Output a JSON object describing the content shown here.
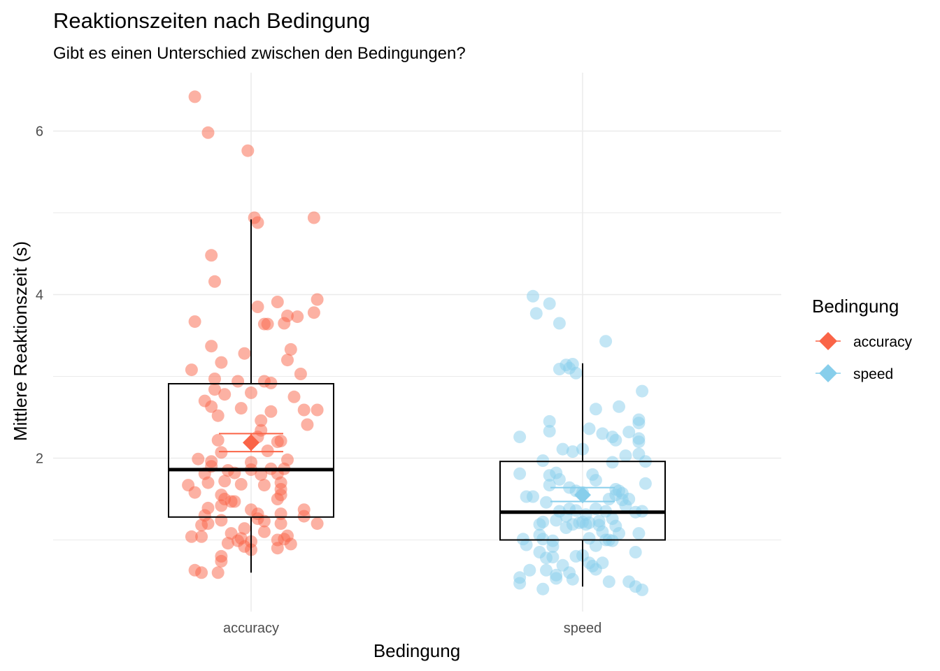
{
  "chart_data": {
    "type": "box+jitter",
    "title": "Reaktionszeiten nach Bedingung",
    "subtitle": "Gibt es einen Unterschied zwischen den Bedingungen?",
    "xlabel": "Bedingung",
    "ylabel": "Mittlere Reaktionszeit (s)",
    "categories": [
      "accuracy",
      "speed"
    ],
    "ylim": [
      0.25,
      6.7
    ],
    "yticks": [
      2,
      4,
      6
    ],
    "grid": true,
    "legend": {
      "title": "Bedingung",
      "position": "right",
      "entries": [
        "accuracy",
        "speed"
      ]
    },
    "colors": {
      "accuracy": "#FA6447",
      "speed": "#87CEEB",
      "box": "#000000",
      "grid": "#EBEBEB"
    },
    "boxes": [
      {
        "category": "accuracy",
        "whisker_low": 0.6,
        "q1": 1.28,
        "median": 1.86,
        "q3": 2.91,
        "whisker_high": 4.92,
        "mean": 2.19,
        "mean_ci": [
          2.08,
          2.3
        ]
      },
      {
        "category": "speed",
        "whisker_low": 0.43,
        "q1": 1.0,
        "median": 1.34,
        "q3": 1.96,
        "whisker_high": 3.16,
        "mean": 1.55,
        "mean_ci": [
          1.47,
          1.64
        ]
      }
    ],
    "points": {
      "accuracy": [
        [
          -0.17,
          6.42
        ],
        [
          -0.13,
          5.98
        ],
        [
          -0.01,
          5.76
        ],
        [
          0.01,
          4.94
        ],
        [
          0.02,
          4.88
        ],
        [
          0.19,
          4.94
        ],
        [
          -0.12,
          4.48
        ],
        [
          -0.11,
          4.16
        ],
        [
          0.2,
          3.94
        ],
        [
          0.02,
          3.85
        ],
        [
          0.08,
          3.91
        ],
        [
          0.19,
          3.78
        ],
        [
          -0.17,
          3.67
        ],
        [
          0.04,
          3.64
        ],
        [
          0.05,
          3.64
        ],
        [
          0.1,
          3.65
        ],
        [
          0.11,
          3.74
        ],
        [
          0.14,
          3.73
        ],
        [
          -0.12,
          3.37
        ],
        [
          -0.09,
          3.17
        ],
        [
          -0.02,
          3.28
        ],
        [
          0.12,
          3.33
        ],
        [
          0.11,
          3.2
        ],
        [
          -0.18,
          3.08
        ],
        [
          0.15,
          3.03
        ],
        [
          -0.11,
          2.97
        ],
        [
          -0.04,
          2.94
        ],
        [
          0.04,
          2.94
        ],
        [
          0.06,
          2.92
        ],
        [
          -0.11,
          2.84
        ],
        [
          -0.08,
          2.78
        ],
        [
          0.0,
          2.8
        ],
        [
          0.13,
          2.75
        ],
        [
          -0.14,
          2.7
        ],
        [
          -0.12,
          2.63
        ],
        [
          -0.03,
          2.61
        ],
        [
          0.06,
          2.57
        ],
        [
          0.16,
          2.59
        ],
        [
          0.2,
          2.59
        ],
        [
          -0.1,
          2.52
        ],
        [
          0.03,
          2.46
        ],
        [
          0.17,
          2.41
        ],
        [
          0.03,
          2.34
        ],
        [
          0.08,
          2.2
        ],
        [
          -0.1,
          2.22
        ],
        [
          0.02,
          2.26
        ],
        [
          0.09,
          2.21
        ],
        [
          -0.09,
          2.07
        ],
        [
          0.05,
          2.09
        ],
        [
          -0.16,
          1.99
        ],
        [
          -0.12,
          1.96
        ],
        [
          0.0,
          1.95
        ],
        [
          0.11,
          1.98
        ],
        [
          -0.12,
          1.9
        ],
        [
          -0.07,
          1.85
        ],
        [
          0.0,
          1.86
        ],
        [
          0.06,
          1.87
        ],
        [
          0.1,
          1.87
        ],
        [
          -0.14,
          1.81
        ],
        [
          -0.05,
          1.82
        ],
        [
          0.03,
          1.8
        ],
        [
          0.08,
          1.81
        ],
        [
          -0.08,
          1.72
        ],
        [
          0.09,
          1.7
        ],
        [
          -0.19,
          1.67
        ],
        [
          -0.13,
          1.7
        ],
        [
          -0.03,
          1.68
        ],
        [
          0.04,
          1.67
        ],
        [
          0.09,
          1.62
        ],
        [
          -0.17,
          1.58
        ],
        [
          -0.09,
          1.55
        ],
        [
          -0.08,
          1.5
        ],
        [
          -0.06,
          1.47
        ],
        [
          -0.05,
          1.47
        ],
        [
          0.08,
          1.5
        ],
        [
          0.09,
          1.55
        ],
        [
          -0.13,
          1.39
        ],
        [
          -0.09,
          1.42
        ],
        [
          0.0,
          1.37
        ],
        [
          0.02,
          1.32
        ],
        [
          0.09,
          1.32
        ],
        [
          0.16,
          1.37
        ],
        [
          -0.14,
          1.3
        ],
        [
          -0.09,
          1.24
        ],
        [
          0.02,
          1.26
        ],
        [
          0.04,
          1.23
        ],
        [
          0.16,
          1.29
        ],
        [
          -0.15,
          1.18
        ],
        [
          -0.13,
          1.2
        ],
        [
          0.09,
          1.2
        ],
        [
          0.2,
          1.2
        ],
        [
          -0.02,
          1.14
        ],
        [
          0.04,
          1.1
        ],
        [
          0.11,
          1.05
        ],
        [
          -0.06,
          1.08
        ],
        [
          -0.18,
          1.04
        ],
        [
          -0.15,
          1.04
        ],
        [
          -0.04,
          0.99
        ],
        [
          -0.03,
          1.02
        ],
        [
          0.0,
          0.98
        ],
        [
          0.08,
          1.0
        ],
        [
          0.1,
          1.01
        ],
        [
          -0.07,
          0.96
        ],
        [
          -0.02,
          0.92
        ],
        [
          0.0,
          0.88
        ],
        [
          0.08,
          0.9
        ],
        [
          0.12,
          0.95
        ],
        [
          -0.09,
          0.8
        ],
        [
          -0.09,
          0.74
        ],
        [
          -0.17,
          0.63
        ],
        [
          -0.15,
          0.6
        ],
        [
          -0.1,
          0.6
        ]
      ],
      "speed": [
        [
          -0.15,
          3.98
        ],
        [
          -0.14,
          3.77
        ],
        [
          -0.1,
          3.89
        ],
        [
          -0.07,
          3.65
        ],
        [
          0.07,
          3.43
        ],
        [
          -0.07,
          3.09
        ],
        [
          -0.05,
          3.14
        ],
        [
          -0.04,
          3.1
        ],
        [
          -0.03,
          3.15
        ],
        [
          -0.02,
          3.04
        ],
        [
          0.18,
          2.82
        ],
        [
          0.04,
          2.6
        ],
        [
          0.11,
          2.63
        ],
        [
          0.17,
          2.47
        ],
        [
          0.17,
          2.43
        ],
        [
          -0.1,
          2.45
        ],
        [
          -0.1,
          2.33
        ],
        [
          0.02,
          2.36
        ],
        [
          0.06,
          2.3
        ],
        [
          0.09,
          2.26
        ],
        [
          0.1,
          2.22
        ],
        [
          0.14,
          2.32
        ],
        [
          0.17,
          2.24
        ],
        [
          0.17,
          2.2
        ],
        [
          -0.19,
          2.26
        ],
        [
          -0.06,
          2.11
        ],
        [
          -0.03,
          2.08
        ],
        [
          0.0,
          2.11
        ],
        [
          0.17,
          2.05
        ],
        [
          0.13,
          2.03
        ],
        [
          0.09,
          1.95
        ],
        [
          0.19,
          1.96
        ],
        [
          -0.12,
          1.97
        ],
        [
          -0.08,
          1.82
        ],
        [
          0.03,
          1.8
        ],
        [
          -0.19,
          1.81
        ],
        [
          -0.1,
          1.79
        ],
        [
          -0.07,
          1.74
        ],
        [
          0.04,
          1.73
        ],
        [
          0.19,
          1.69
        ],
        [
          -0.1,
          1.67
        ],
        [
          -0.04,
          1.64
        ],
        [
          -0.02,
          1.6
        ],
        [
          0.0,
          1.58
        ],
        [
          0.1,
          1.62
        ],
        [
          0.11,
          1.6
        ],
        [
          0.12,
          1.57
        ],
        [
          0.1,
          1.55
        ],
        [
          0.08,
          1.5
        ],
        [
          0.14,
          1.5
        ],
        [
          0.12,
          1.49
        ],
        [
          -0.17,
          1.53
        ],
        [
          -0.15,
          1.53
        ],
        [
          -0.11,
          1.46
        ],
        [
          0.13,
          1.42
        ],
        [
          -0.04,
          1.38
        ],
        [
          -0.07,
          1.35
        ],
        [
          -0.02,
          1.36
        ],
        [
          0.04,
          1.38
        ],
        [
          0.18,
          1.35
        ],
        [
          0.16,
          1.34
        ],
        [
          0.07,
          1.35
        ],
        [
          0.01,
          1.31
        ],
        [
          -0.05,
          1.29
        ],
        [
          0.09,
          1.26
        ],
        [
          0.05,
          1.23
        ],
        [
          -0.12,
          1.22
        ],
        [
          -0.13,
          1.19
        ],
        [
          -0.08,
          1.24
        ],
        [
          0.0,
          1.22
        ],
        [
          0.01,
          1.19
        ],
        [
          -0.01,
          1.21
        ],
        [
          0.02,
          1.21
        ],
        [
          0.05,
          1.18
        ],
        [
          0.1,
          1.17
        ],
        [
          -0.05,
          1.15
        ],
        [
          -0.03,
          1.19
        ],
        [
          0.06,
          1.1
        ],
        [
          -0.13,
          1.06
        ],
        [
          0.11,
          1.08
        ],
        [
          0.17,
          1.08
        ],
        [
          -0.12,
          1.01
        ],
        [
          -0.18,
          1.01
        ],
        [
          -0.09,
          0.99
        ],
        [
          0.02,
          1.02
        ],
        [
          0.07,
          1.0
        ],
        [
          0.09,
          0.99
        ],
        [
          0.08,
          1.0
        ],
        [
          -0.17,
          0.94
        ],
        [
          -0.09,
          0.92
        ],
        [
          0.04,
          0.93
        ],
        [
          -0.13,
          0.85
        ],
        [
          -0.11,
          0.78
        ],
        [
          -0.09,
          0.79
        ],
        [
          0.0,
          0.81
        ],
        [
          0.16,
          0.85
        ],
        [
          -0.06,
          0.69
        ],
        [
          -0.02,
          0.8
        ],
        [
          0.02,
          0.72
        ],
        [
          0.06,
          0.72
        ],
        [
          0.03,
          0.68
        ],
        [
          -0.16,
          0.63
        ],
        [
          -0.11,
          0.63
        ],
        [
          -0.08,
          0.53
        ],
        [
          -0.04,
          0.6
        ],
        [
          0.04,
          0.64
        ],
        [
          -0.19,
          0.54
        ],
        [
          -0.19,
          0.47
        ],
        [
          -0.08,
          0.57
        ],
        [
          -0.03,
          0.52
        ],
        [
          0.08,
          0.49
        ],
        [
          0.14,
          0.49
        ],
        [
          0.16,
          0.43
        ],
        [
          0.18,
          0.39
        ],
        [
          -0.12,
          0.4
        ]
      ]
    }
  }
}
